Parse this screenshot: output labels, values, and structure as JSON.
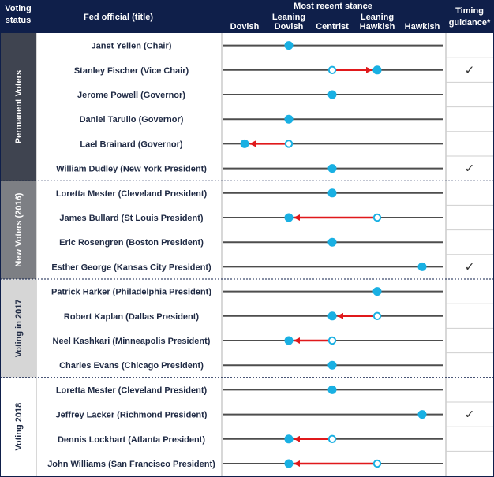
{
  "colors": {
    "header_bg": "#0f1f4a",
    "header_text": "#ffffff",
    "line": "#4d4d4d",
    "dot": "#19b0e3",
    "arrow": "#e0191b",
    "group_dark": "#3f4450",
    "group_mid": "#7d7f84",
    "group_light": "#d6d6d6",
    "group_white": "#ffffff",
    "row_text": "#1f2a44"
  },
  "header": {
    "voting_status": [
      "Voting",
      "status"
    ],
    "fed_official": "Fed official (title)",
    "most_recent_stance": "Most recent stance",
    "timing_guidance": [
      "Timing",
      "guidance*"
    ]
  },
  "chart_data": {
    "type": "dot-arrow",
    "stance_categories": [
      [
        "Dovish"
      ],
      [
        "Leaning",
        "Dovish"
      ],
      [
        "Centrist"
      ],
      [
        "Leaning",
        "Hawkish"
      ],
      [
        "Hawkish"
      ]
    ],
    "check_symbol": "✓",
    "groups": [
      {
        "label": "Permanent Voters",
        "shade": "dark",
        "rows": [
          0,
          5
        ]
      },
      {
        "label": "New Voters (2016)",
        "shade": "mid",
        "rows": [
          6,
          9
        ]
      },
      {
        "label": "Voting in 2017",
        "shade": "light",
        "rows": [
          10,
          13
        ]
      },
      {
        "label": "Voting 2018",
        "shade": "white",
        "rows": [
          14,
          17
        ]
      }
    ],
    "officials": [
      {
        "name": "Janet Yellen (Chair)",
        "stance": 1,
        "from": null,
        "timing": false
      },
      {
        "name": "Stanley Fischer (Vice Chair)",
        "stance": 3,
        "from": 2,
        "timing": true
      },
      {
        "name": "Jerome Powell (Governor)",
        "stance": 2,
        "from": null,
        "timing": false
      },
      {
        "name": "Daniel Tarullo (Governor)",
        "stance": 1,
        "from": null,
        "timing": false
      },
      {
        "name": "Lael Brainard (Governor)",
        "stance": 0,
        "from": 1,
        "timing": false
      },
      {
        "name": "William Dudley (New York President)",
        "stance": 2,
        "from": null,
        "timing": true
      },
      {
        "name": "Loretta Mester (Cleveland President)",
        "stance": 2,
        "from": null,
        "timing": false
      },
      {
        "name": "James Bullard (St Louis President)",
        "stance": 1,
        "from": 3,
        "timing": false
      },
      {
        "name": "Eric Rosengren (Boston President)",
        "stance": 2,
        "from": null,
        "timing": false
      },
      {
        "name": "Esther George (Kansas City President)",
        "stance": 4,
        "from": null,
        "timing": true
      },
      {
        "name": "Patrick Harker (Philadelphia President)",
        "stance": 3,
        "from": null,
        "timing": false
      },
      {
        "name": "Robert Kaplan (Dallas President)",
        "stance": 2,
        "from": 3,
        "timing": false
      },
      {
        "name": "Neel Kashkari (Minneapolis President)",
        "stance": 1,
        "from": 2,
        "timing": false
      },
      {
        "name": "Charles Evans (Chicago President)",
        "stance": 2,
        "from": null,
        "timing": false
      },
      {
        "name": "Loretta Mester (Cleveland President)",
        "stance": 2,
        "from": null,
        "timing": false
      },
      {
        "name": "Jeffrey Lacker (Richmond President)",
        "stance": 4,
        "from": null,
        "timing": true
      },
      {
        "name": "Dennis Lockhart (Atlanta President)",
        "stance": 1,
        "from": 2,
        "timing": false
      },
      {
        "name": "John Williams (San Francisco President)",
        "stance": 1,
        "from": 3,
        "timing": false
      }
    ]
  }
}
